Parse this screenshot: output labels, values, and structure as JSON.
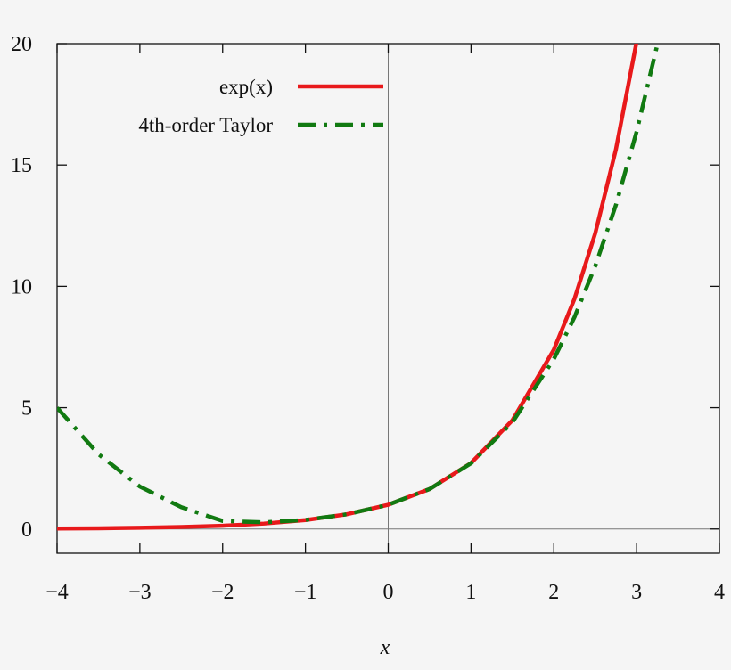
{
  "chart_data": {
    "type": "line",
    "title": "",
    "xlabel": "x",
    "ylabel": "",
    "xlim": [
      -4,
      4
    ],
    "ylim": [
      -1,
      20
    ],
    "xticks": [
      -4,
      -3,
      -2,
      -1,
      0,
      1,
      2,
      3,
      4
    ],
    "xtick_labels": [
      "−4",
      "−3",
      "−2",
      "−1",
      "0",
      "1",
      "2",
      "3",
      "4"
    ],
    "yticks": [
      0,
      5,
      10,
      15,
      20
    ],
    "ytick_labels": [
      "0",
      "5",
      "10",
      "15",
      "20"
    ],
    "grid": false,
    "zero_lines": true,
    "legend_position": "top-left",
    "series": [
      {
        "name": "exp(x)",
        "color": "#e8191b",
        "style": "solid",
        "x": [
          -4,
          -3.5,
          -3,
          -2.5,
          -2,
          -1.5,
          -1,
          -0.5,
          0,
          0.5,
          1,
          1.5,
          2,
          2.25,
          2.5,
          2.75,
          3,
          3.05
        ],
        "y": [
          0.018,
          0.03,
          0.05,
          0.082,
          0.135,
          0.223,
          0.368,
          0.607,
          1,
          1.649,
          2.718,
          4.482,
          7.389,
          9.488,
          12.182,
          15.643,
          20.086,
          21.115
        ]
      },
      {
        "name": "4th-order Taylor",
        "color": "#117a11",
        "style": "dash-dot",
        "x": [
          -4,
          -3.5,
          -3,
          -2.5,
          -2,
          -1.5,
          -1,
          -0.5,
          0,
          0.5,
          1,
          1.5,
          2,
          2.25,
          2.5,
          2.75,
          3,
          3.25,
          3.3
        ],
        "y": [
          5,
          3.083,
          1.75,
          0.9,
          0.333,
          0.273,
          0.375,
          0.607,
          1,
          1.648,
          2.708,
          4.398,
          7,
          8.732,
          10.831,
          13.352,
          16.375,
          19.956,
          20.734
        ]
      }
    ]
  }
}
